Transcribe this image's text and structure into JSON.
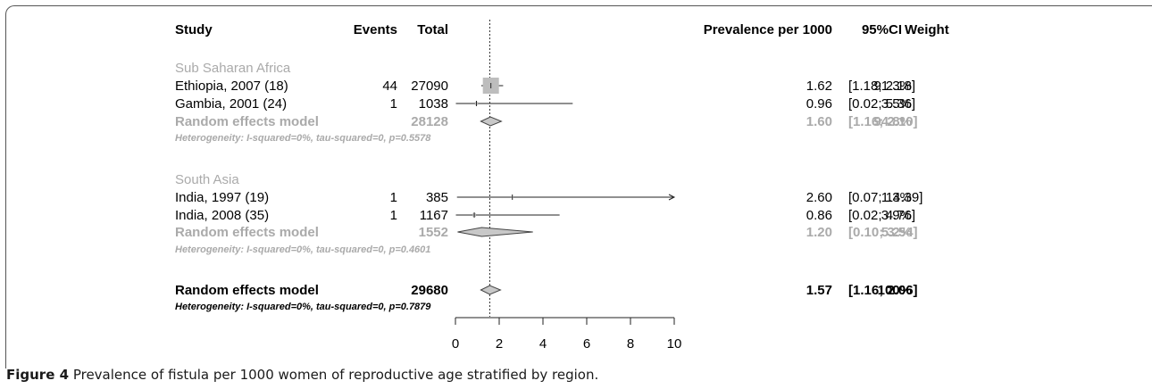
{
  "header": {
    "study": "Study",
    "events": "Events",
    "total": "Total",
    "prevalence": "Prevalence per 1000",
    "ci": "95%CI",
    "weight": "Weight"
  },
  "colors": {
    "main": "#000000",
    "subgroup": "#aaaaaa",
    "box": "#bdbdbd",
    "diamond_fill": "#c8c8c8"
  },
  "chart_data": {
    "type": "forest",
    "xlim": [
      0,
      10
    ],
    "x_ticks": [
      0,
      2,
      4,
      6,
      8,
      10
    ],
    "reference_line": 1.57,
    "groups": [
      {
        "name": "Sub Saharan Africa",
        "studies": [
          {
            "study": "Ethiopia, 2007 (18)",
            "events": "44",
            "total": "27090",
            "est": 1.62,
            "lo": 1.18,
            "hi": 2.18,
            "est_text": "1.62",
            "ci_text": "[1.18; 2.18]",
            "weight": "91.3%",
            "weight_value": 91.3
          },
          {
            "study": "Gambia, 2001 (24)",
            "events": "1",
            "total": "1038",
            "est": 0.96,
            "lo": 0.02,
            "hi": 5.36,
            "est_text": "0.96",
            "ci_text": "[0.02; 5.36]",
            "weight": "3.5%",
            "weight_value": 3.5
          }
        ],
        "summary": {
          "label": "Random effects model",
          "total": "28128",
          "est": 1.6,
          "lo": 1.16,
          "hi": 2.1,
          "est_text": "1.60",
          "ci_text": "[1.16; 2.10]",
          "weight": "94.8%"
        },
        "heterogeneity": "Heterogeneity: I-squared=0%, tau-squared=0, p=0.5578"
      },
      {
        "name": "South Asia",
        "studies": [
          {
            "study": "India, 1997 (19)",
            "events": "1",
            "total": "385",
            "est": 2.6,
            "lo": 0.07,
            "hi": 14.39,
            "est_text": "2.60",
            "ci_text": "[0.07; 14.39]",
            "weight": "1.3%",
            "weight_value": 1.3
          },
          {
            "study": "India, 2008 (35)",
            "events": "1",
            "total": "1167",
            "est": 0.86,
            "lo": 0.02,
            "hi": 4.76,
            "est_text": "0.86",
            "ci_text": "[0.02; 4.76]",
            "weight": "3.9%",
            "weight_value": 3.9
          }
        ],
        "summary": {
          "label": "Random effects model",
          "total": "1552",
          "est": 1.2,
          "lo": 0.1,
          "hi": 3.54,
          "est_text": "1.20",
          "ci_text": "[0.10; 3.54]",
          "weight": "5.2%"
        },
        "heterogeneity": "Heterogeneity: I-squared=0%, tau-squared=0, p=0.4601"
      }
    ],
    "overall": {
      "label": "Random effects model",
      "total": "29680",
      "est": 1.57,
      "lo": 1.16,
      "hi": 2.06,
      "est_text": "1.57",
      "ci_text": "[1.16; 2.06]",
      "weight": "100%",
      "heterogeneity": "Heterogeneity: I-squared=0%, tau-squared=0, p=0.7879"
    }
  },
  "caption": {
    "label": "Figure 4",
    "text": "Prevalence of fistula per 1000 women of reproductive age stratified by region."
  }
}
